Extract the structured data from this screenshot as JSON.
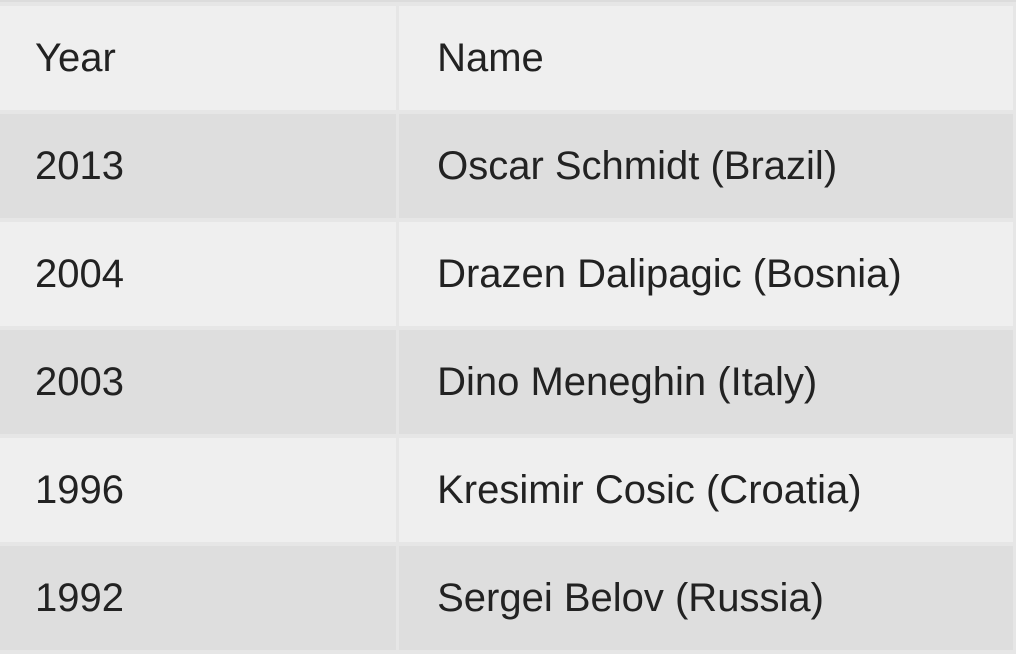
{
  "table": {
    "headers": [
      "Year",
      "Name"
    ],
    "rows": [
      [
        "2013",
        "Oscar Schmidt (Brazil)"
      ],
      [
        "2004",
        "Drazen Dalipagic (Bosnia)"
      ],
      [
        "2003",
        "Dino Meneghin (Italy)"
      ],
      [
        "1996",
        "Kresimir Cosic (Croatia)"
      ],
      [
        "1992",
        "Sergei Belov (Russia)"
      ]
    ]
  }
}
